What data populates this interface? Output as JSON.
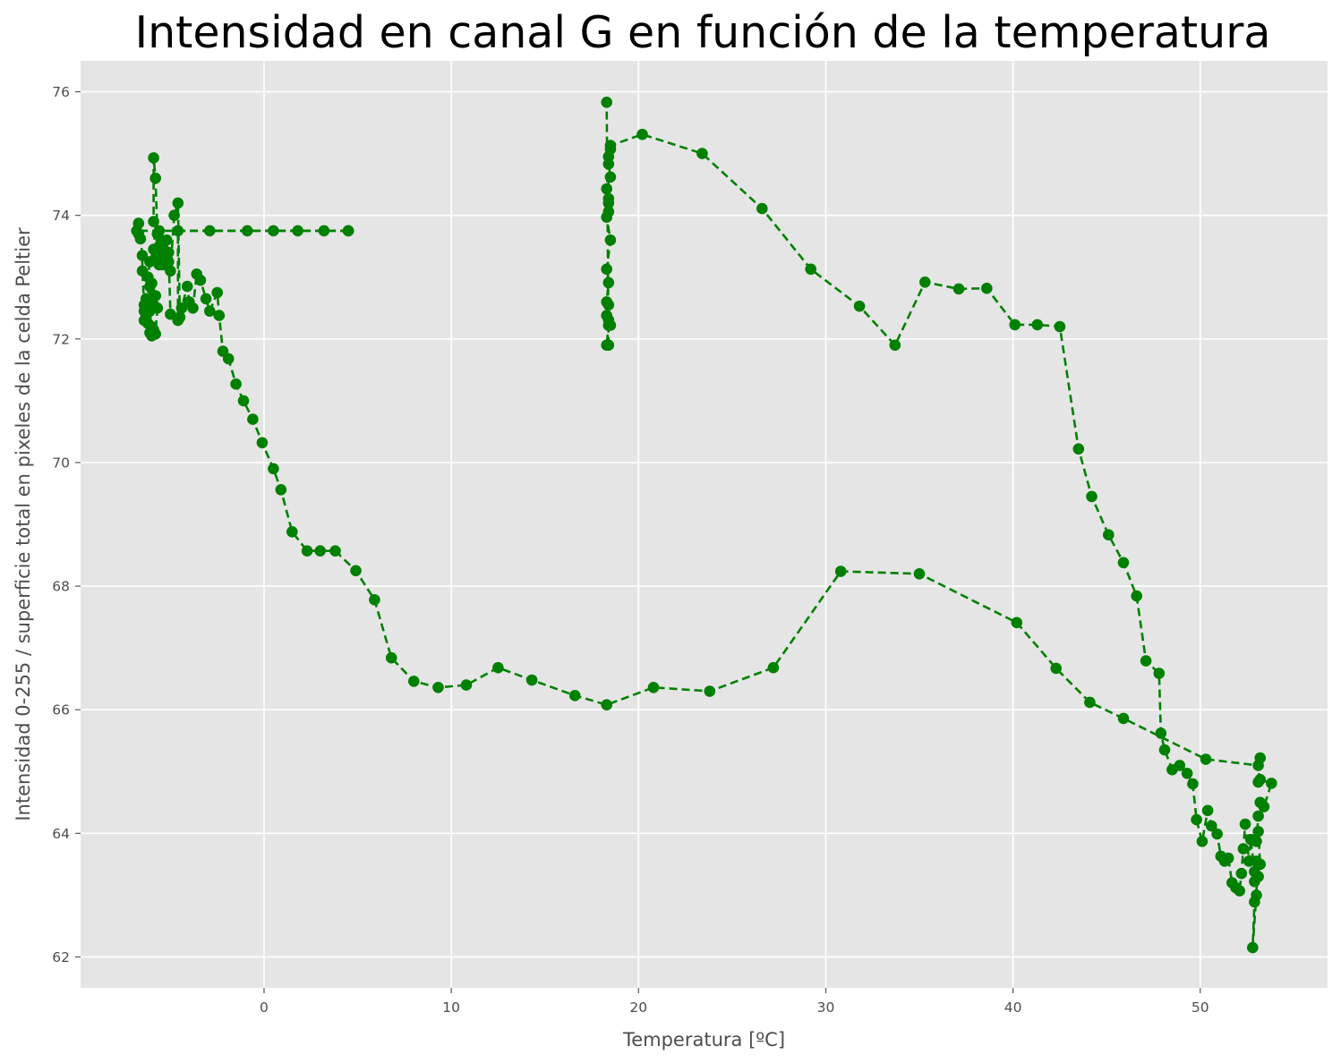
{
  "chart_data": {
    "type": "line",
    "title": "Intensidad en canal G en función de la temperatura",
    "xlabel": "Temperatura [ºC]",
    "ylabel": "Intensidad 0-255 / superficie total en pixeles de la celda Peltier",
    "xlim": [
      -9.8,
      56.8
    ],
    "ylim": [
      61.5,
      76.5
    ],
    "xticks": [
      0,
      10,
      20,
      30,
      40,
      50
    ],
    "yticks": [
      62,
      64,
      66,
      68,
      70,
      72,
      74,
      76
    ],
    "grid": true,
    "legend": "none",
    "background_color": "#e5e5e5",
    "grid_color": "#ffffff",
    "series": [
      {
        "color": "#008000",
        "line_style": "dashed",
        "marker": "circle",
        "x": [
          4.5,
          3.2,
          1.8,
          0.5,
          -0.9,
          -2.9,
          -4.6,
          -4.6,
          -5.0,
          -5.1,
          -5.3,
          -5.7,
          -5.8,
          -5.9,
          -5.9,
          -5.8,
          -5.6,
          -5.4,
          -5.2,
          -5.1,
          -5.0,
          -4.8,
          -4.6,
          -4.5,
          -4.4,
          -4.1,
          -4.0,
          -3.8,
          -3.6,
          -3.4,
          -3.1,
          -2.9,
          -2.5,
          -2.4,
          -2.2,
          -1.9,
          -1.5,
          -1.1,
          -0.6,
          -0.1,
          0.5,
          0.9,
          1.5,
          2.3,
          3.0,
          3.8,
          4.9,
          5.9,
          6.8,
          8.0,
          9.3,
          10.8,
          12.5,
          14.3,
          16.6,
          18.3,
          20.8,
          23.8,
          27.2,
          30.8,
          35.0,
          40.2,
          42.3,
          44.1,
          45.9,
          50.3,
          53.1,
          53.2,
          53.1,
          53.2,
          53.8,
          53.4,
          53.2,
          53.1,
          53.0,
          53.1,
          53.2,
          53.0,
          52.9,
          53.1,
          52.9,
          52.8,
          53.0,
          52.9,
          52.7,
          52.6,
          52.4,
          52.3,
          52.2,
          52.1,
          51.9,
          51.7,
          51.5,
          51.3,
          51.1,
          50.9,
          50.6,
          50.4,
          50.1,
          49.8,
          49.6,
          49.3,
          48.9,
          48.5,
          48.1,
          47.9,
          47.8,
          47.1,
          46.6,
          45.9,
          45.1,
          44.2,
          43.5,
          42.5,
          41.3,
          40.1,
          38.6,
          37.1,
          35.3,
          33.7,
          31.8,
          29.2,
          26.6,
          23.4,
          20.2,
          18.5,
          18.5,
          18.4,
          18.4,
          18.5,
          18.3,
          18.4,
          18.4,
          18.4,
          18.3,
          18.5,
          18.3,
          18.4,
          18.3,
          18.4,
          18.3,
          18.4,
          18.5,
          18.4,
          18.3,
          18.4,
          18.3
        ],
        "y": [
          73.75,
          73.75,
          73.75,
          73.75,
          73.75,
          73.75,
          73.75,
          72.3,
          72.4,
          73.4,
          73.2,
          73.7,
          74.6,
          74.93,
          73.9,
          73.3,
          73.5,
          73.2,
          73.6,
          73.25,
          73.1,
          74.0,
          74.2,
          72.35,
          72.5,
          72.85,
          72.6,
          72.5,
          73.05,
          72.95,
          72.65,
          72.45,
          72.75,
          72.38,
          71.8,
          71.68,
          71.27,
          71.0,
          70.7,
          70.32,
          69.9,
          69.56,
          68.88,
          68.57,
          68.57,
          68.57,
          68.25,
          67.78,
          66.84,
          66.46,
          66.36,
          66.4,
          66.68,
          66.48,
          66.23,
          66.08,
          66.36,
          66.3,
          66.68,
          68.24,
          68.2,
          67.41,
          66.67,
          66.12,
          65.86,
          65.2,
          65.1,
          65.22,
          64.83,
          64.87,
          64.81,
          64.43,
          64.5,
          64.28,
          63.87,
          64.03,
          63.5,
          63.55,
          63.22,
          63.3,
          62.89,
          62.15,
          63.0,
          63.38,
          63.9,
          63.55,
          64.15,
          63.75,
          63.35,
          63.07,
          63.12,
          63.2,
          63.6,
          63.55,
          63.63,
          63.99,
          64.12,
          64.37,
          63.87,
          64.22,
          64.8,
          64.97,
          65.1,
          65.03,
          65.35,
          65.62,
          66.59,
          66.79,
          67.84,
          68.38,
          68.83,
          69.45,
          70.22,
          72.2,
          72.23,
          72.23,
          72.82,
          72.81,
          72.92,
          71.9,
          72.53,
          73.13,
          74.11,
          75.0,
          75.31,
          75.13,
          75.07,
          74.95,
          74.83,
          74.62,
          74.43,
          74.27,
          74.2,
          74.06,
          73.97,
          73.6,
          73.13,
          72.91,
          72.6,
          72.55,
          72.38,
          72.31,
          72.22,
          72.22,
          71.9,
          71.9,
          75.83
        ]
      }
    ],
    "start_cluster": {
      "color": "#008000",
      "line_style": "dashed",
      "marker": "circle",
      "x": [
        4.5,
        -6.8,
        -6.7,
        -6.7,
        -6.6,
        -6.5,
        -6.5,
        -6.4,
        -6.4,
        -6.3,
        -6.2,
        -6.1,
        -6.0,
        -6.0,
        -5.9,
        -5.8,
        -5.7,
        -5.9,
        -6.1,
        -6.3,
        -6.4,
        -6.3,
        -6.1,
        -5.9,
        -5.8,
        -6.0,
        -6.2,
        -6.1,
        -5.9,
        -5.7,
        -5.6,
        -5.5,
        -5.4,
        -5.3,
        -5.5,
        -5.6
      ],
      "y": [
        73.75,
        73.75,
        73.7,
        73.87,
        73.62,
        73.35,
        73.1,
        72.55,
        72.45,
        72.3,
        72.25,
        72.1,
        72.05,
        72.2,
        72.15,
        72.08,
        72.5,
        72.7,
        72.45,
        72.35,
        72.3,
        72.65,
        72.85,
        72.55,
        72.7,
        72.9,
        73.0,
        73.25,
        73.45,
        73.3,
        73.2,
        73.35,
        73.45,
        73.4,
        73.6,
        73.75
      ]
    }
  }
}
